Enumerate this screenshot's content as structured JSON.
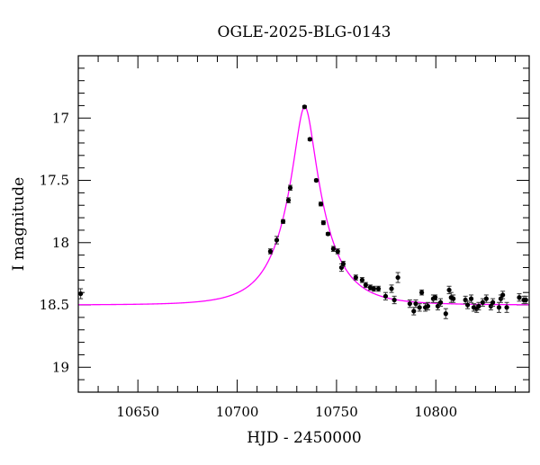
{
  "chart_data": {
    "type": "scatter",
    "title": "OGLE-2025-BLG-0143",
    "xlabel": "HJD - 2450000",
    "ylabel": "I magnitude",
    "xlim": [
      10620,
      10847
    ],
    "ylim": [
      16.5,
      19.2
    ],
    "y_inverted": true,
    "grid": false,
    "x_ticks": [
      10650,
      10700,
      10750,
      10800
    ],
    "x_tick_labels": [
      "10650",
      "10700",
      "10750",
      "10800"
    ],
    "y_ticks": [
      17,
      17.5,
      18,
      18.5,
      19
    ],
    "y_tick_labels": [
      "17",
      "17.5",
      "18",
      "18.5",
      "19"
    ],
    "colors": {
      "points": "#000000",
      "model": "#ff00ff"
    },
    "model": {
      "type": "point-lens",
      "t0": 10734,
      "u0": 0.236,
      "tE": 20,
      "baseline": 18.5
    },
    "points": [
      [
        10621.2,
        18.41,
        0.04
      ],
      [
        10716.7,
        18.07,
        0.02
      ],
      [
        10719.9,
        17.98,
        0.03
      ],
      [
        10723.1,
        17.83,
        0.015
      ],
      [
        10725.8,
        17.66,
        0.02
      ],
      [
        10726.7,
        17.56,
        0.02
      ],
      [
        10733.9,
        16.91,
        0.01
      ],
      [
        10736.6,
        17.17,
        0.01
      ],
      [
        10739.8,
        17.5,
        0.01
      ],
      [
        10742.1,
        17.69,
        0.015
      ],
      [
        10743.4,
        17.84,
        0.015
      ],
      [
        10745.7,
        17.93,
        0.01
      ],
      [
        10748.4,
        18.05,
        0.02
      ],
      [
        10750.6,
        18.07,
        0.02
      ],
      [
        10752.5,
        18.2,
        0.03
      ],
      [
        10753.4,
        18.17,
        0.02
      ],
      [
        10759.7,
        18.28,
        0.02
      ],
      [
        10762.9,
        18.3,
        0.02
      ],
      [
        10764.7,
        18.34,
        0.02
      ],
      [
        10767.0,
        18.36,
        0.02
      ],
      [
        10768.8,
        18.37,
        0.02
      ],
      [
        10771.1,
        18.37,
        0.02
      ],
      [
        10774.7,
        18.43,
        0.03
      ],
      [
        10777.7,
        18.37,
        0.03
      ],
      [
        10779.1,
        18.46,
        0.03
      ],
      [
        10780.9,
        18.28,
        0.04
      ],
      [
        10786.9,
        18.49,
        0.03
      ],
      [
        10788.9,
        18.55,
        0.03
      ],
      [
        10789.9,
        18.49,
        0.03
      ],
      [
        10791.8,
        18.52,
        0.03
      ],
      [
        10792.9,
        18.4,
        0.02
      ],
      [
        10794.7,
        18.52,
        0.03
      ],
      [
        10796.0,
        18.51,
        0.03
      ],
      [
        10798.7,
        18.45,
        0.03
      ],
      [
        10799.7,
        18.44,
        0.02
      ],
      [
        10801.0,
        18.51,
        0.03
      ],
      [
        10802.4,
        18.48,
        0.03
      ],
      [
        10805.0,
        18.57,
        0.04
      ],
      [
        10806.7,
        18.38,
        0.03
      ],
      [
        10807.7,
        18.44,
        0.04
      ],
      [
        10808.8,
        18.45,
        0.03
      ],
      [
        10814.9,
        18.46,
        0.03
      ],
      [
        10816.0,
        18.5,
        0.03
      ],
      [
        10817.8,
        18.45,
        0.03
      ],
      [
        10819.1,
        18.52,
        0.03
      ],
      [
        10820.6,
        18.53,
        0.03
      ],
      [
        10821.6,
        18.51,
        0.03
      ],
      [
        10823.6,
        18.48,
        0.03
      ],
      [
        10825.4,
        18.45,
        0.03
      ],
      [
        10827.7,
        18.51,
        0.03
      ],
      [
        10828.7,
        18.48,
        0.03
      ],
      [
        10831.8,
        18.52,
        0.04
      ],
      [
        10832.7,
        18.45,
        0.03
      ],
      [
        10833.7,
        18.42,
        0.03
      ],
      [
        10835.7,
        18.52,
        0.04
      ],
      [
        10842.0,
        18.44,
        0.03
      ],
      [
        10844.3,
        18.46,
        0.03
      ],
      [
        10845.3,
        18.46,
        0.03
      ]
    ]
  }
}
